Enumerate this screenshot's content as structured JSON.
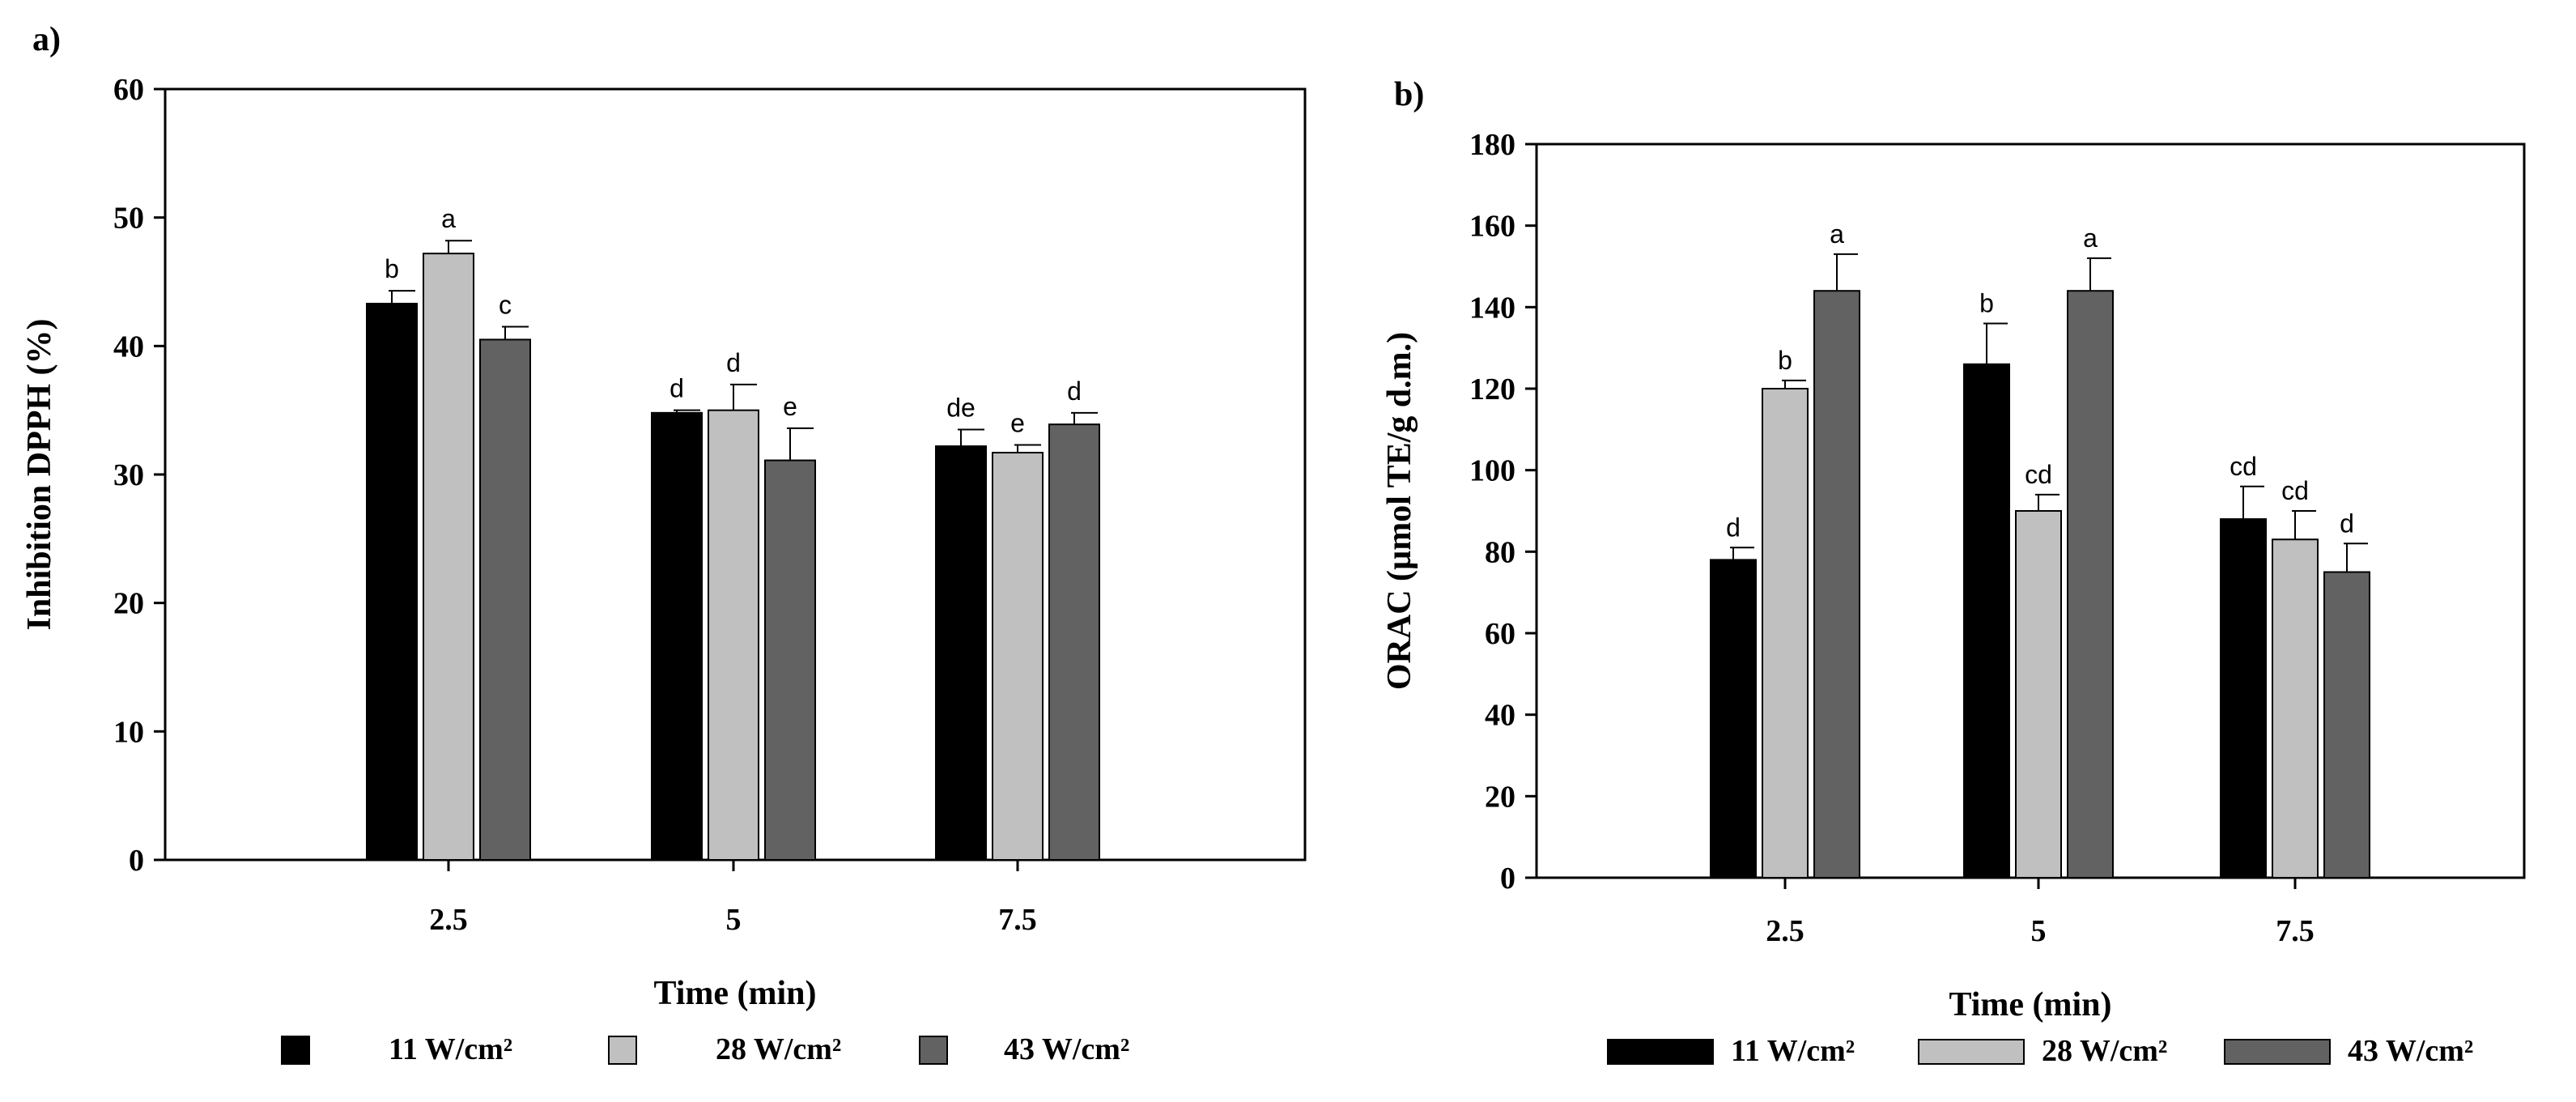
{
  "chart_data": [
    {
      "type": "bar",
      "panel_label": "a)",
      "title": "",
      "xlabel": "Time  (min)",
      "ylabel": "Inhibition DPPH (%)",
      "categories": [
        "2.5",
        "5",
        "7.5"
      ],
      "ylim": [
        0,
        60
      ],
      "yticks": [
        "0",
        "10",
        "20",
        "30",
        "40",
        "50",
        "60"
      ],
      "grid": false,
      "legend_position": "bottom",
      "series": [
        {
          "name": "11 W/cm²",
          "color": "#000000",
          "values": [
            43.3,
            34.8,
            32.2
          ],
          "errors": [
            1.0,
            0.2,
            1.3
          ],
          "labels": [
            "b",
            "d",
            "de"
          ]
        },
        {
          "name": "28 W/cm²",
          "color": "#c0c0c0",
          "values": [
            47.2,
            35.0,
            31.7
          ],
          "errors": [
            1.0,
            2.0,
            0.6
          ],
          "labels": [
            "a",
            "d",
            "e"
          ]
        },
        {
          "name": "43 W/cm²",
          "color": "#626262",
          "values": [
            40.5,
            31.1,
            33.9
          ],
          "errors": [
            1.0,
            2.5,
            0.9
          ],
          "labels": [
            "c",
            "e",
            "d"
          ]
        }
      ]
    },
    {
      "type": "bar",
      "panel_label": "b)",
      "title": "",
      "xlabel": "Time (min)",
      "ylabel": "ORAC (µmol TE/g d.m.)",
      "categories": [
        "2.5",
        "5",
        "7.5"
      ],
      "ylim": [
        0,
        180
      ],
      "yticks": [
        "0",
        "20",
        "40",
        "60",
        "80",
        "100",
        "120",
        "140",
        "160",
        "180"
      ],
      "grid": false,
      "legend_position": "bottom",
      "series": [
        {
          "name": "11 W/cm²",
          "color": "#000000",
          "values": [
            78,
            126,
            88
          ],
          "errors": [
            3,
            10,
            8
          ],
          "labels": [
            "d",
            "b",
            "cd"
          ]
        },
        {
          "name": "28 W/cm²",
          "color": "#c0c0c0",
          "values": [
            120,
            90,
            83
          ],
          "errors": [
            2,
            4,
            7
          ],
          "labels": [
            "b",
            "cd",
            "cd"
          ]
        },
        {
          "name": "43 W/cm²",
          "color": "#626262",
          "values": [
            144,
            144,
            75
          ],
          "errors": [
            9,
            8,
            7
          ],
          "labels": [
            "a",
            "a",
            "d"
          ]
        }
      ]
    }
  ]
}
